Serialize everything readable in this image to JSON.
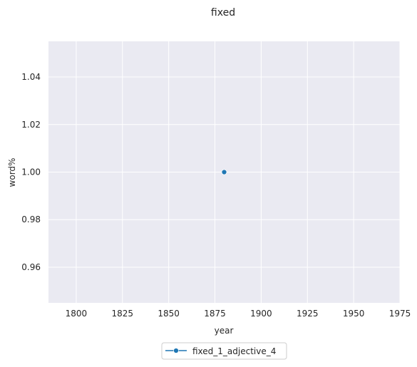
{
  "chart_data": {
    "type": "line",
    "title": "fixed",
    "xlabel": "year",
    "ylabel": "word%",
    "xlim": [
      1785,
      1975
    ],
    "ylim": [
      0.945,
      1.055
    ],
    "xticks": [
      1800,
      1825,
      1850,
      1875,
      1900,
      1925,
      1950,
      1975
    ],
    "yticks": [
      0.96,
      0.98,
      1.0,
      1.02,
      1.04
    ],
    "xtick_labels": [
      "1800",
      "1825",
      "1850",
      "1875",
      "1900",
      "1925",
      "1950",
      "1975"
    ],
    "ytick_labels": [
      "0.96",
      "0.98",
      "1.00",
      "1.02",
      "1.04"
    ],
    "grid": true,
    "legend_position": "bottom-center",
    "series": [
      {
        "name": "fixed_1_adjective_4",
        "color": "#1f77b4",
        "marker": "circle",
        "points": [
          {
            "x": 1880,
            "y": 1.0
          }
        ]
      }
    ]
  }
}
